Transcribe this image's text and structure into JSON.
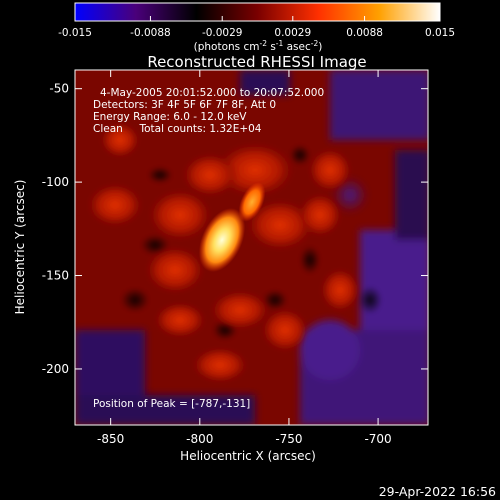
{
  "colorbar": {
    "ticks": [
      "-0.015",
      "-0.0088",
      "-0.0029",
      "0.0029",
      "0.0088",
      "0.015"
    ],
    "units_main": "(photons cm",
    "units_sup1": "-2",
    "units_mid1": " s",
    "units_sup2": "-1",
    "units_mid2": " asec",
    "units_sup3": "-2",
    "units_end": ")",
    "colors": [
      "#0000ff",
      "#4a007a",
      "#000000",
      "#7a0000",
      "#ff3000",
      "#ffa000",
      "#ffffff"
    ]
  },
  "plot": {
    "title": "Reconstructed RHESSI Image",
    "annotation_lines": [
      "4-May-2005 20:01:52.000 to 20:07:52.000",
      "Detectors: 3F 4F 5F 6F 7F 8F, Att 0",
      "Energy Range: 6.0 - 12.0 keV",
      "Clean     Total counts: 1.32E+04"
    ],
    "peak_label": "Position of Peak = [-787,-131]",
    "xlabel": "Heliocentric X (arcsec)",
    "ylabel": "Heliocentric Y (arcsec)",
    "xticks": [
      "-850",
      "-800",
      "-750",
      "-700"
    ],
    "yticks": [
      "-50",
      "-100",
      "-150",
      "-200"
    ]
  },
  "footer": {
    "timestamp": "29-Apr-2022 16:56"
  },
  "chart_data": {
    "type": "heatmap",
    "title": "Reconstructed RHESSI Image",
    "xlabel": "Heliocentric X (arcsec)",
    "ylabel": "Heliocentric Y (arcsec)",
    "xlim": [
      -870,
      -672
    ],
    "ylim": [
      -230,
      -40
    ],
    "xticks": [
      -850,
      -800,
      -750,
      -700
    ],
    "yticks": [
      -50,
      -100,
      -150,
      -200
    ],
    "colorbar_range": [
      -0.015,
      0.015
    ],
    "colorbar_ticks": [
      -0.015,
      -0.0088,
      -0.0029,
      0.0029,
      0.0088,
      0.015
    ],
    "peak_position": [
      -787,
      -131
    ],
    "sources": [
      {
        "x": -787,
        "y": -131,
        "value": 0.015
      },
      {
        "x": -771,
        "y": -107,
        "value": 0.0095
      }
    ],
    "grid": false
  }
}
